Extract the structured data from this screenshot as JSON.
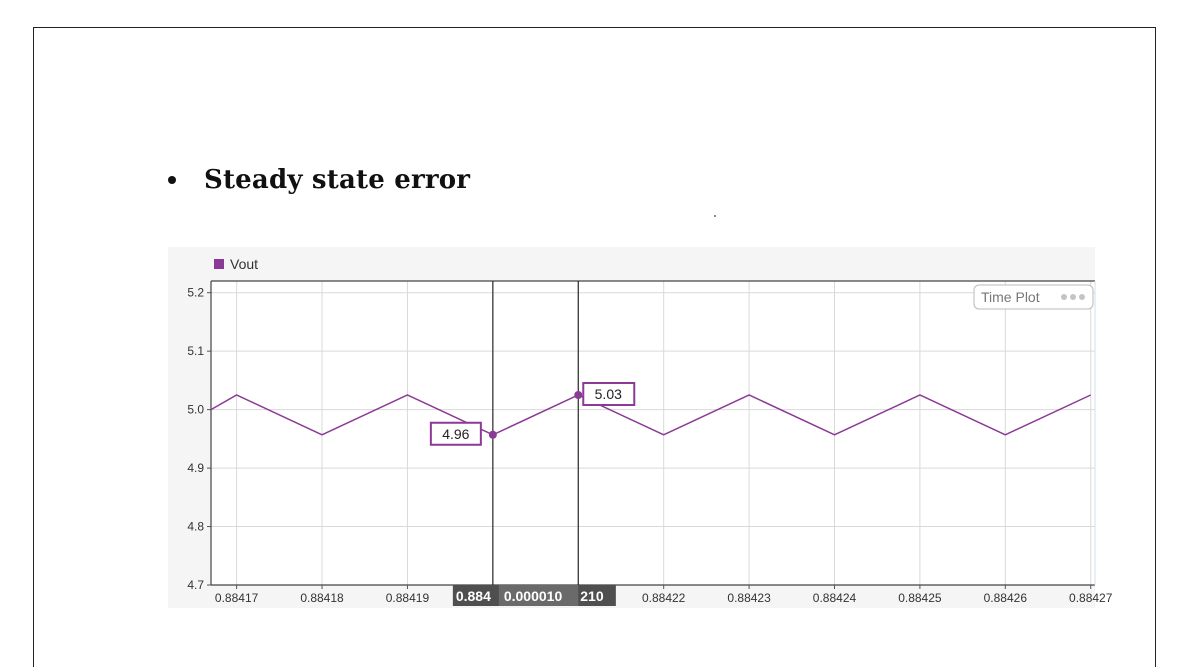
{
  "slide": {
    "bullet_text": "Steady state error"
  },
  "chart_data": {
    "type": "line",
    "series": [
      {
        "name": "Vout",
        "color": "#8b3a95",
        "x": [
          0.884167,
          0.88417,
          0.88418,
          0.88419,
          0.8842,
          0.88421,
          0.88422,
          0.88423,
          0.88424,
          0.88425,
          0.88426,
          0.88427
        ],
        "values": [
          5.0,
          5.025,
          4.957,
          5.025,
          4.957,
          5.025,
          4.957,
          5.025,
          4.957,
          5.025,
          4.957,
          5.025
        ]
      }
    ],
    "xlabel": "",
    "ylabel": "",
    "xlim": [
      0.884167,
      0.8842705
    ],
    "ylim": [
      4.7,
      5.22
    ],
    "x_ticks": [
      {
        "value": 0.88417,
        "label": "0.88417"
      },
      {
        "value": 0.88418,
        "label": "0.88418"
      },
      {
        "value": 0.88419,
        "label": "0.88419"
      },
      {
        "value": 0.88422,
        "label": "0.88422"
      },
      {
        "value": 0.88423,
        "label": "0.88423"
      },
      {
        "value": 0.88424,
        "label": "0.88424"
      },
      {
        "value": 0.88425,
        "label": "0.88425"
      },
      {
        "value": 0.88426,
        "label": "0.88426"
      },
      {
        "value": 0.88427,
        "label": "0.88427"
      }
    ],
    "x_grid": [
      0.88417,
      0.88418,
      0.88419,
      0.8842,
      0.88421,
      0.88422,
      0.88423,
      0.88424,
      0.88425,
      0.88426,
      0.88427
    ],
    "y_ticks": [
      {
        "value": 4.7,
        "label": "4.7"
      },
      {
        "value": 4.8,
        "label": "4.8"
      },
      {
        "value": 4.9,
        "label": "4.9"
      },
      {
        "value": 5.0,
        "label": "5.0"
      },
      {
        "value": 5.1,
        "label": "5.1"
      },
      {
        "value": 5.2,
        "label": "5.2"
      }
    ],
    "grid": true,
    "legend": {
      "label": "Vout",
      "position": "top-left"
    },
    "badge": "Time Plot",
    "cursors": [
      {
        "x": 0.8842,
        "value": 4.957,
        "label": "4.96"
      },
      {
        "x": 0.88421,
        "value": 5.025,
        "label": "5.03"
      }
    ],
    "cursor_readout": {
      "left_value": "0.884",
      "delta": "0.000010",
      "right_value": "210"
    }
  }
}
